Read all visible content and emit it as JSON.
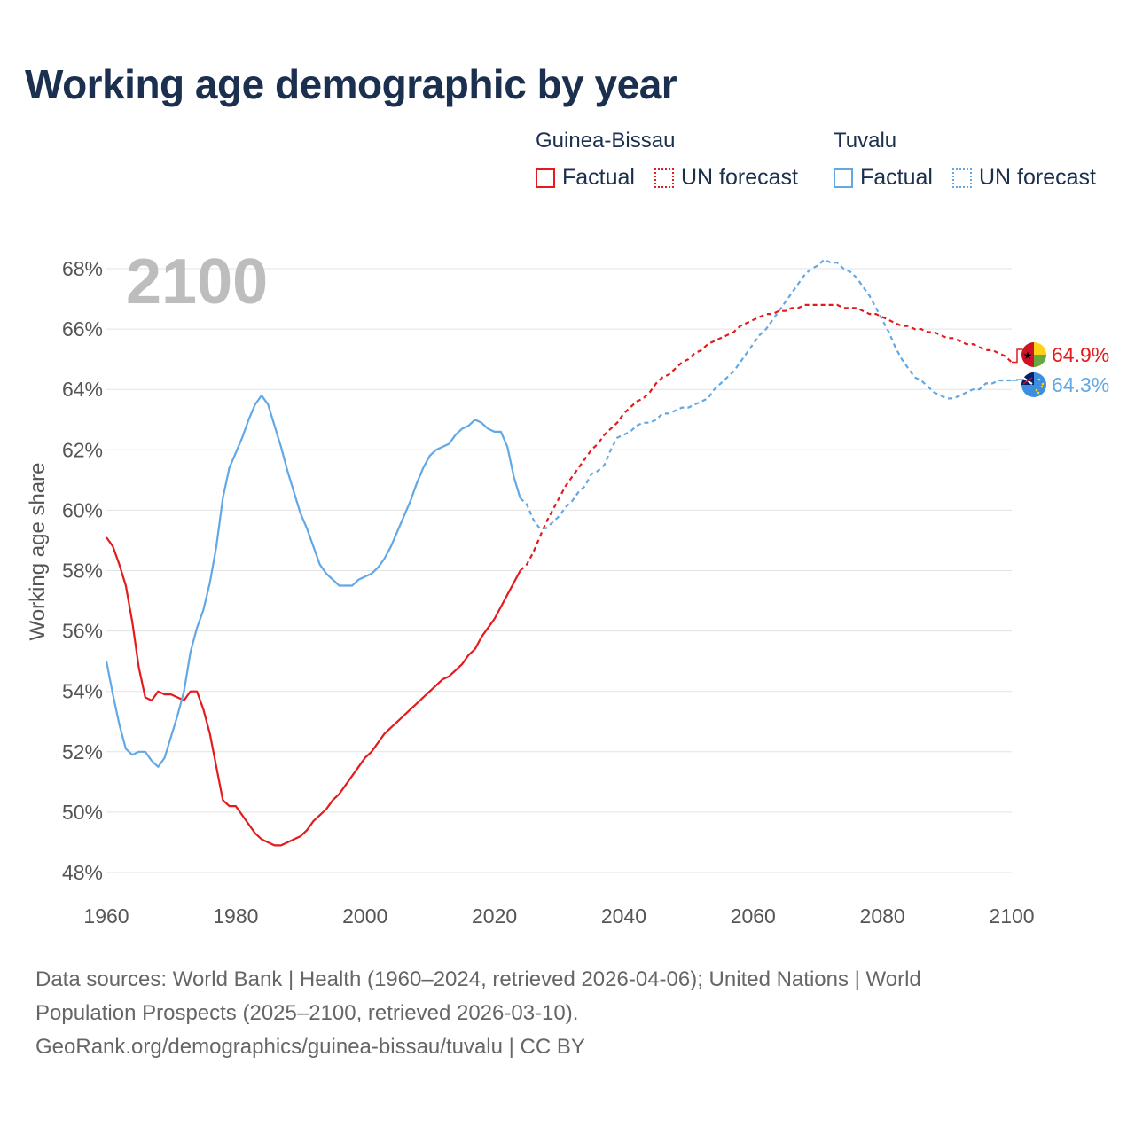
{
  "title": "Working age demographic by year",
  "legend": {
    "groups": [
      {
        "name": "Guinea-Bissau",
        "color": "#e41a1c",
        "factual_label": "Factual",
        "forecast_label": "UN forecast"
      },
      {
        "name": "Tuvalu",
        "color": "#62a8e5",
        "factual_label": "Factual",
        "forecast_label": "UN forecast"
      }
    ]
  },
  "footer": {
    "line1": "Data sources: World Bank | Health (1960–2024, retrieved 2026-04-06); United Nations | World",
    "line2": "Population Prospects (2025–2100, retrieved 2026-03-10).",
    "line3": "GeoRank.org/demographics/guinea-bissau/tuvalu | CC BY"
  },
  "chart_data": {
    "type": "line",
    "year_label": "2100",
    "ylabel": "Working age share",
    "xlim": [
      1960,
      2100
    ],
    "ylim": [
      48,
      68
    ],
    "x_ticks": [
      "1960",
      "1980",
      "2000",
      "2020",
      "2040",
      "2060",
      "2080",
      "2100"
    ],
    "y_ticks": [
      "48%",
      "50%",
      "52%",
      "54%",
      "56%",
      "58%",
      "60%",
      "62%",
      "64%",
      "66%",
      "68%"
    ],
    "gridlines": true,
    "factual_end_year": 2024,
    "series": [
      {
        "name": "Guinea-Bissau",
        "color": "#e41a1c",
        "end_label": "64.9%",
        "points": [
          [
            1960,
            59.1
          ],
          [
            1961,
            58.8
          ],
          [
            1962,
            58.2
          ],
          [
            1963,
            57.5
          ],
          [
            1964,
            56.3
          ],
          [
            1965,
            54.8
          ],
          [
            1966,
            53.8
          ],
          [
            1967,
            53.7
          ],
          [
            1968,
            54.0
          ],
          [
            1969,
            53.9
          ],
          [
            1970,
            53.9
          ],
          [
            1971,
            53.8
          ],
          [
            1972,
            53.7
          ],
          [
            1973,
            54.0
          ],
          [
            1974,
            54.0
          ],
          [
            1975,
            53.4
          ],
          [
            1976,
            52.6
          ],
          [
            1977,
            51.5
          ],
          [
            1978,
            50.4
          ],
          [
            1979,
            50.2
          ],
          [
            1980,
            50.2
          ],
          [
            1981,
            49.9
          ],
          [
            1982,
            49.6
          ],
          [
            1983,
            49.3
          ],
          [
            1984,
            49.1
          ],
          [
            1985,
            49.0
          ],
          [
            1986,
            48.9
          ],
          [
            1987,
            48.9
          ],
          [
            1988,
            49.0
          ],
          [
            1989,
            49.1
          ],
          [
            1990,
            49.2
          ],
          [
            1991,
            49.4
          ],
          [
            1992,
            49.7
          ],
          [
            1993,
            49.9
          ],
          [
            1994,
            50.1
          ],
          [
            1995,
            50.4
          ],
          [
            1996,
            50.6
          ],
          [
            1997,
            50.9
          ],
          [
            1998,
            51.2
          ],
          [
            1999,
            51.5
          ],
          [
            2000,
            51.8
          ],
          [
            2001,
            52.0
          ],
          [
            2002,
            52.3
          ],
          [
            2003,
            52.6
          ],
          [
            2004,
            52.8
          ],
          [
            2005,
            53.0
          ],
          [
            2006,
            53.2
          ],
          [
            2007,
            53.4
          ],
          [
            2008,
            53.6
          ],
          [
            2009,
            53.8
          ],
          [
            2010,
            54.0
          ],
          [
            2011,
            54.2
          ],
          [
            2012,
            54.4
          ],
          [
            2013,
            54.5
          ],
          [
            2014,
            54.7
          ],
          [
            2015,
            54.9
          ],
          [
            2016,
            55.2
          ],
          [
            2017,
            55.4
          ],
          [
            2018,
            55.8
          ],
          [
            2019,
            56.1
          ],
          [
            2020,
            56.4
          ],
          [
            2021,
            56.8
          ],
          [
            2022,
            57.2
          ],
          [
            2023,
            57.6
          ],
          [
            2024,
            58.0
          ],
          [
            2025,
            58.2
          ],
          [
            2026,
            58.6
          ],
          [
            2027,
            59.1
          ],
          [
            2028,
            59.6
          ],
          [
            2029,
            60.0
          ],
          [
            2030,
            60.4
          ],
          [
            2031,
            60.8
          ],
          [
            2032,
            61.1
          ],
          [
            2033,
            61.4
          ],
          [
            2034,
            61.7
          ],
          [
            2035,
            62.0
          ],
          [
            2036,
            62.2
          ],
          [
            2037,
            62.5
          ],
          [
            2038,
            62.7
          ],
          [
            2039,
            62.9
          ],
          [
            2040,
            63.2
          ],
          [
            2041,
            63.4
          ],
          [
            2042,
            63.6
          ],
          [
            2043,
            63.7
          ],
          [
            2044,
            63.9
          ],
          [
            2045,
            64.2
          ],
          [
            2046,
            64.4
          ],
          [
            2047,
            64.5
          ],
          [
            2048,
            64.7
          ],
          [
            2049,
            64.9
          ],
          [
            2050,
            65.0
          ],
          [
            2051,
            65.2
          ],
          [
            2052,
            65.3
          ],
          [
            2053,
            65.5
          ],
          [
            2054,
            65.6
          ],
          [
            2055,
            65.7
          ],
          [
            2056,
            65.8
          ],
          [
            2057,
            65.9
          ],
          [
            2058,
            66.1
          ],
          [
            2059,
            66.2
          ],
          [
            2060,
            66.3
          ],
          [
            2061,
            66.4
          ],
          [
            2062,
            66.5
          ],
          [
            2063,
            66.5
          ],
          [
            2064,
            66.6
          ],
          [
            2065,
            66.6
          ],
          [
            2066,
            66.7
          ],
          [
            2067,
            66.7
          ],
          [
            2068,
            66.8
          ],
          [
            2069,
            66.8
          ],
          [
            2070,
            66.8
          ],
          [
            2071,
            66.8
          ],
          [
            2072,
            66.8
          ],
          [
            2073,
            66.8
          ],
          [
            2074,
            66.7
          ],
          [
            2075,
            66.7
          ],
          [
            2076,
            66.7
          ],
          [
            2077,
            66.6
          ],
          [
            2078,
            66.5
          ],
          [
            2079,
            66.5
          ],
          [
            2080,
            66.4
          ],
          [
            2081,
            66.3
          ],
          [
            2082,
            66.2
          ],
          [
            2083,
            66.1
          ],
          [
            2084,
            66.1
          ],
          [
            2085,
            66.0
          ],
          [
            2086,
            66.0
          ],
          [
            2087,
            65.9
          ],
          [
            2088,
            65.9
          ],
          [
            2089,
            65.8
          ],
          [
            2090,
            65.7
          ],
          [
            2091,
            65.7
          ],
          [
            2092,
            65.6
          ],
          [
            2093,
            65.5
          ],
          [
            2094,
            65.5
          ],
          [
            2095,
            65.4
          ],
          [
            2096,
            65.3
          ],
          [
            2097,
            65.3
          ],
          [
            2098,
            65.2
          ],
          [
            2099,
            65.1
          ],
          [
            2100,
            64.9
          ]
        ]
      },
      {
        "name": "Tuvalu",
        "color": "#62a8e5",
        "end_label": "64.3%",
        "points": [
          [
            1960,
            55.0
          ],
          [
            1961,
            53.9
          ],
          [
            1962,
            52.9
          ],
          [
            1963,
            52.1
          ],
          [
            1964,
            51.9
          ],
          [
            1965,
            52.0
          ],
          [
            1966,
            52.0
          ],
          [
            1967,
            51.7
          ],
          [
            1968,
            51.5
          ],
          [
            1969,
            51.8
          ],
          [
            1970,
            52.5
          ],
          [
            1971,
            53.2
          ],
          [
            1972,
            54.0
          ],
          [
            1973,
            55.3
          ],
          [
            1974,
            56.1
          ],
          [
            1975,
            56.7
          ],
          [
            1976,
            57.6
          ],
          [
            1977,
            58.8
          ],
          [
            1978,
            60.4
          ],
          [
            1979,
            61.4
          ],
          [
            1980,
            61.9
          ],
          [
            1981,
            62.4
          ],
          [
            1982,
            63.0
          ],
          [
            1983,
            63.5
          ],
          [
            1984,
            63.8
          ],
          [
            1985,
            63.5
          ],
          [
            1986,
            62.8
          ],
          [
            1987,
            62.1
          ],
          [
            1988,
            61.3
          ],
          [
            1989,
            60.6
          ],
          [
            1990,
            59.9
          ],
          [
            1991,
            59.4
          ],
          [
            1992,
            58.8
          ],
          [
            1993,
            58.2
          ],
          [
            1994,
            57.9
          ],
          [
            1995,
            57.7
          ],
          [
            1996,
            57.5
          ],
          [
            1997,
            57.5
          ],
          [
            1998,
            57.5
          ],
          [
            1999,
            57.7
          ],
          [
            2000,
            57.8
          ],
          [
            2001,
            57.9
          ],
          [
            2002,
            58.1
          ],
          [
            2003,
            58.4
          ],
          [
            2004,
            58.8
          ],
          [
            2005,
            59.3
          ],
          [
            2006,
            59.8
          ],
          [
            2007,
            60.3
          ],
          [
            2008,
            60.9
          ],
          [
            2009,
            61.4
          ],
          [
            2010,
            61.8
          ],
          [
            2011,
            62.0
          ],
          [
            2012,
            62.1
          ],
          [
            2013,
            62.2
          ],
          [
            2014,
            62.5
          ],
          [
            2015,
            62.7
          ],
          [
            2016,
            62.8
          ],
          [
            2017,
            63.0
          ],
          [
            2018,
            62.9
          ],
          [
            2019,
            62.7
          ],
          [
            2020,
            62.6
          ],
          [
            2021,
            62.6
          ],
          [
            2022,
            62.1
          ],
          [
            2023,
            61.1
          ],
          [
            2024,
            60.4
          ],
          [
            2025,
            60.2
          ],
          [
            2026,
            59.7
          ],
          [
            2027,
            59.4
          ],
          [
            2028,
            59.4
          ],
          [
            2029,
            59.6
          ],
          [
            2030,
            59.8
          ],
          [
            2031,
            60.1
          ],
          [
            2032,
            60.3
          ],
          [
            2033,
            60.6
          ],
          [
            2034,
            60.8
          ],
          [
            2035,
            61.2
          ],
          [
            2036,
            61.3
          ],
          [
            2037,
            61.5
          ],
          [
            2038,
            62.0
          ],
          [
            2039,
            62.4
          ],
          [
            2040,
            62.5
          ],
          [
            2041,
            62.6
          ],
          [
            2042,
            62.8
          ],
          [
            2043,
            62.9
          ],
          [
            2044,
            62.9
          ],
          [
            2045,
            63.0
          ],
          [
            2046,
            63.2
          ],
          [
            2047,
            63.2
          ],
          [
            2048,
            63.3
          ],
          [
            2049,
            63.4
          ],
          [
            2050,
            63.4
          ],
          [
            2051,
            63.5
          ],
          [
            2052,
            63.6
          ],
          [
            2053,
            63.7
          ],
          [
            2054,
            64.0
          ],
          [
            2055,
            64.2
          ],
          [
            2056,
            64.4
          ],
          [
            2057,
            64.6
          ],
          [
            2058,
            64.9
          ],
          [
            2059,
            65.2
          ],
          [
            2060,
            65.5
          ],
          [
            2061,
            65.8
          ],
          [
            2062,
            66.0
          ],
          [
            2063,
            66.3
          ],
          [
            2064,
            66.6
          ],
          [
            2065,
            66.9
          ],
          [
            2066,
            67.2
          ],
          [
            2067,
            67.5
          ],
          [
            2068,
            67.8
          ],
          [
            2069,
            68.0
          ],
          [
            2070,
            68.1
          ],
          [
            2071,
            68.3
          ],
          [
            2072,
            68.2
          ],
          [
            2073,
            68.2
          ],
          [
            2074,
            68.0
          ],
          [
            2075,
            67.9
          ],
          [
            2076,
            67.7
          ],
          [
            2077,
            67.4
          ],
          [
            2078,
            67.1
          ],
          [
            2079,
            66.7
          ],
          [
            2080,
            66.3
          ],
          [
            2081,
            65.9
          ],
          [
            2082,
            65.4
          ],
          [
            2083,
            65.0
          ],
          [
            2084,
            64.7
          ],
          [
            2085,
            64.4
          ],
          [
            2086,
            64.3
          ],
          [
            2087,
            64.1
          ],
          [
            2088,
            63.9
          ],
          [
            2089,
            63.8
          ],
          [
            2090,
            63.7
          ],
          [
            2091,
            63.7
          ],
          [
            2092,
            63.8
          ],
          [
            2093,
            63.9
          ],
          [
            2094,
            64.0
          ],
          [
            2095,
            64.0
          ],
          [
            2096,
            64.2
          ],
          [
            2097,
            64.2
          ],
          [
            2098,
            64.3
          ],
          [
            2099,
            64.3
          ],
          [
            2100,
            64.3
          ]
        ]
      }
    ]
  }
}
